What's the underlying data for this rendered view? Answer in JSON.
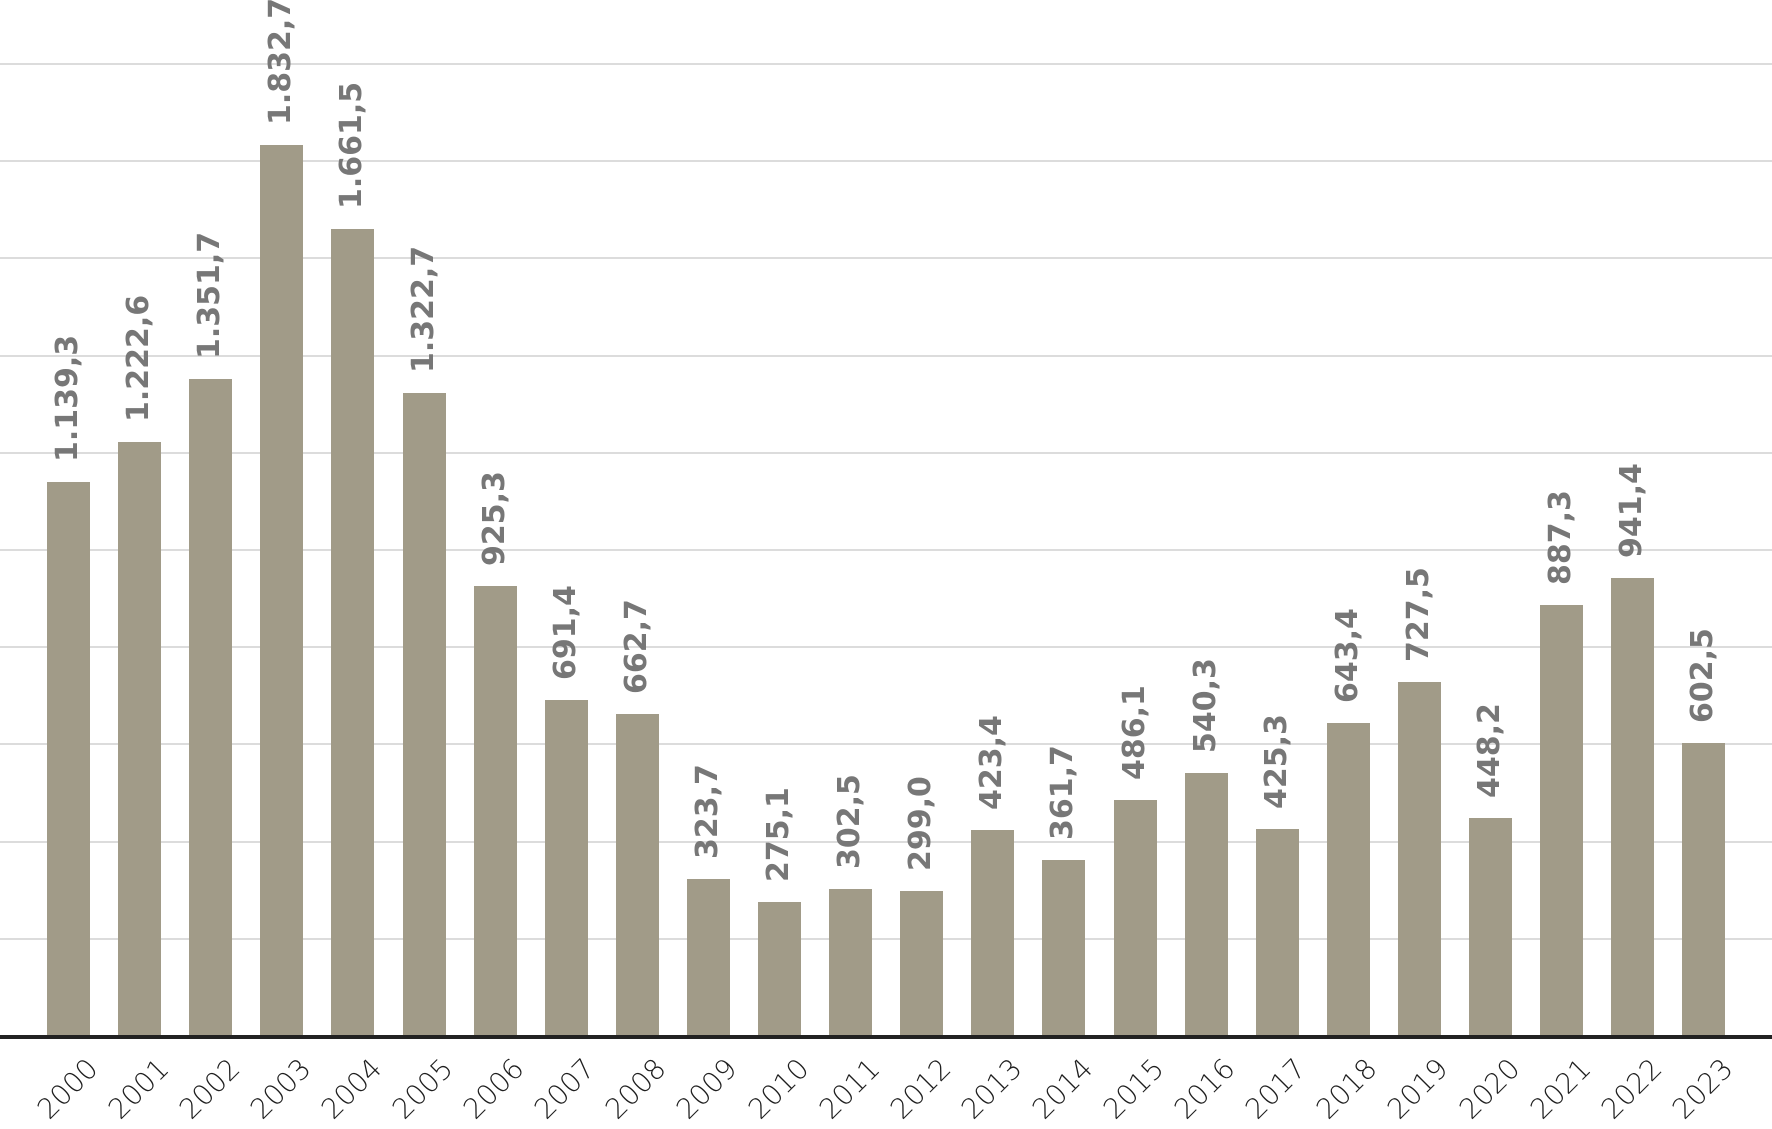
{
  "chart_data": {
    "type": "bar",
    "title": "",
    "xlabel": "",
    "ylabel": "",
    "ylim": [
      0,
      2000
    ],
    "grid": true,
    "gridlines": [
      200,
      400,
      600,
      800,
      1000,
      1200,
      1400,
      1600,
      1800,
      2000
    ],
    "legend": null,
    "categories": [
      "2000",
      "2001",
      "2002",
      "2003",
      "2004",
      "2005",
      "2006",
      "2007",
      "2008",
      "2009",
      "2010",
      "2011",
      "2012",
      "2013",
      "2014",
      "2015",
      "2016",
      "2017",
      "2018",
      "2019",
      "2020",
      "2021",
      "2022",
      "2023"
    ],
    "values": [
      1139.3,
      1222.6,
      1351.7,
      1832.7,
      1661.5,
      1322.7,
      925.3,
      691.4,
      662.7,
      323.7,
      275.1,
      302.5,
      299.0,
      423.4,
      361.7,
      486.1,
      540.3,
      425.3,
      643.4,
      727.5,
      448.2,
      887.3,
      941.4,
      602.5
    ],
    "value_labels": [
      "1.139,3",
      "1.222,6",
      "1.351,7",
      "1.832,7",
      "1.661,5",
      "1.322,7",
      "925,3",
      "691,4",
      "662,7",
      "323,7",
      "275,1",
      "302,5",
      "299,0",
      "423,4",
      "361,7",
      "486,1",
      "540,3",
      "425,3",
      "643,4",
      "727,5",
      "448,2",
      "887,3",
      "941,4",
      "602,5"
    ],
    "colors": {
      "bar": "#a19b88",
      "value_label": "#777777",
      "grid": "#dcdcdc",
      "axis": "#222222",
      "tick_label": "#1e1e1e"
    }
  }
}
